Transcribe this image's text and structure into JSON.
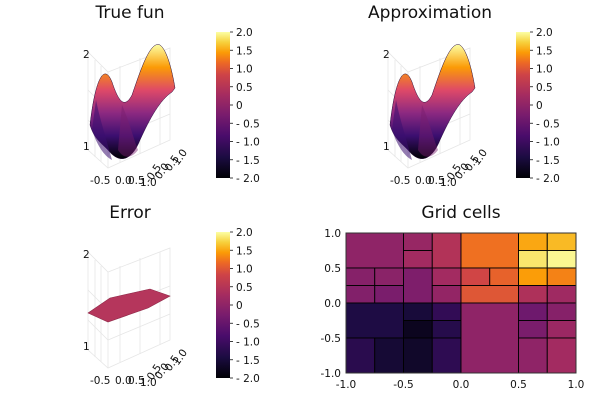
{
  "chart_data": [
    {
      "type": "surface",
      "title": "True fun",
      "zlim": [
        -2,
        2
      ],
      "x_ticks": [
        "-0.5",
        "0.0",
        "0.5",
        "1.0"
      ],
      "y_ticks": [
        "-0.5",
        "0.0",
        "0.5",
        "1.0"
      ],
      "z_ticks": [
        "2",
        "1"
      ],
      "colorbar_ticks": [
        "2.0",
        "1.5",
        "1.0",
        "0.5",
        "0",
        "- 0.5",
        "- 1.0",
        "- 1.5",
        "- 2.0"
      ],
      "colorbar_range": [
        -2,
        2
      ],
      "colormap": "inferno",
      "grid": true
    },
    {
      "type": "surface",
      "title": "Approximation",
      "zlim": [
        -2,
        2
      ],
      "x_ticks": [
        "-0.5",
        "0.0",
        "0.5",
        "1.0"
      ],
      "y_ticks": [
        "-0.5",
        "0.0",
        "0.5",
        "1.0"
      ],
      "z_ticks": [
        "2",
        "1"
      ],
      "colorbar_ticks": [
        "2.0",
        "1.5",
        "1.0",
        "0.5",
        "0",
        "- 0.5",
        "- 1.0",
        "- 1.5",
        "- 2.0"
      ],
      "colorbar_range": [
        -2,
        2
      ],
      "colormap": "inferno",
      "grid": true
    },
    {
      "type": "surface",
      "title": "Error",
      "zlim": [
        -2,
        2
      ],
      "x_ticks": [
        "-0.5",
        "0.0",
        "0.5",
        "1.0"
      ],
      "y_ticks": [
        "-0.5",
        "0.0",
        "0.5",
        "1.0"
      ],
      "z_ticks": [
        "2",
        "1"
      ],
      "colorbar_ticks": [
        "2.0",
        "1.5",
        "1.0",
        "0.5",
        "0",
        "- 0.5",
        "- 1.0",
        "- 1.5",
        "- 2.0"
      ],
      "colorbar_range": [
        -2,
        2
      ],
      "colormap": "inferno",
      "grid": true,
      "approx_value": 0
    },
    {
      "type": "heatmap",
      "title": "Grid cells",
      "xlim": [
        -1,
        1
      ],
      "ylim": [
        -1,
        1
      ],
      "x_ticks": [
        "-1.0",
        "-0.5",
        "0.0",
        "0.5",
        "1.0"
      ],
      "y_ticks": [
        "1.0",
        "0.5",
        "0.0",
        "-0.5",
        "-1.0"
      ],
      "colormap": "inferno",
      "value_range": [
        -2,
        2
      ],
      "grid": false,
      "cells": [
        {
          "x0": -1.0,
          "x1": -0.5,
          "y0": 0.5,
          "y1": 1.0,
          "v": 0.0
        },
        {
          "x0": -0.5,
          "x1": -0.25,
          "y0": 0.75,
          "y1": 1.0,
          "v": 0.1
        },
        {
          "x0": -0.5,
          "x1": -0.25,
          "y0": 0.5,
          "y1": 0.75,
          "v": 0.25
        },
        {
          "x0": -0.25,
          "x1": 0.0,
          "y0": 0.5,
          "y1": 1.0,
          "v": 0.45
        },
        {
          "x0": 0.0,
          "x1": 0.5,
          "y0": 0.5,
          "y1": 1.0,
          "v": 1.2
        },
        {
          "x0": 0.5,
          "x1": 0.75,
          "y0": 0.75,
          "y1": 1.0,
          "v": 1.5
        },
        {
          "x0": 0.5,
          "x1": 0.75,
          "y0": 0.5,
          "y1": 0.75,
          "v": 1.85
        },
        {
          "x0": 0.75,
          "x1": 1.0,
          "y0": 0.75,
          "y1": 1.0,
          "v": 1.6
        },
        {
          "x0": 0.75,
          "x1": 1.0,
          "y0": 0.5,
          "y1": 0.75,
          "v": 1.95
        },
        {
          "x0": -1.0,
          "x1": -0.75,
          "y0": 0.25,
          "y1": 0.5,
          "v": -0.1
        },
        {
          "x0": -0.75,
          "x1": -0.5,
          "y0": 0.25,
          "y1": 0.5,
          "v": -0.05
        },
        {
          "x0": -1.0,
          "x1": -0.75,
          "y0": 0.0,
          "y1": 0.25,
          "v": -0.15
        },
        {
          "x0": -0.75,
          "x1": -0.5,
          "y0": 0.0,
          "y1": 0.25,
          "v": -0.25
        },
        {
          "x0": -0.5,
          "x1": -0.25,
          "y0": 0.0,
          "y1": 0.5,
          "v": -0.2
        },
        {
          "x0": -0.25,
          "x1": 0.0,
          "y0": 0.25,
          "y1": 0.5,
          "v": 0.25
        },
        {
          "x0": -0.25,
          "x1": 0.0,
          "y0": 0.0,
          "y1": 0.25,
          "v": 0.05
        },
        {
          "x0": 0.0,
          "x1": 0.25,
          "y0": 0.25,
          "y1": 0.5,
          "v": 0.85
        },
        {
          "x0": 0.25,
          "x1": 0.5,
          "y0": 0.25,
          "y1": 0.5,
          "v": 1.1
        },
        {
          "x0": 0.0,
          "x1": 0.5,
          "y0": 0.0,
          "y1": 0.25,
          "v": 1.0
        },
        {
          "x0": 0.5,
          "x1": 0.75,
          "y0": 0.25,
          "y1": 0.5,
          "v": 1.45
        },
        {
          "x0": 0.75,
          "x1": 1.0,
          "y0": 0.25,
          "y1": 0.5,
          "v": 1.3
        },
        {
          "x0": 0.5,
          "x1": 0.75,
          "y0": 0.0,
          "y1": 0.25,
          "v": 0.4
        },
        {
          "x0": 0.75,
          "x1": 1.0,
          "y0": 0.0,
          "y1": 0.25,
          "v": 0.2
        },
        {
          "x0": -1.0,
          "x1": -0.5,
          "y0": -0.5,
          "y1": 0.0,
          "v": -1.4
        },
        {
          "x0": -0.5,
          "x1": -0.25,
          "y0": -0.25,
          "y1": 0.0,
          "v": -1.5
        },
        {
          "x0": -0.5,
          "x1": -0.25,
          "y0": -0.5,
          "y1": -0.25,
          "v": -1.75
        },
        {
          "x0": -0.25,
          "x1": 0.0,
          "y0": -0.25,
          "y1": 0.0,
          "v": -1.15
        },
        {
          "x0": -0.25,
          "x1": 0.0,
          "y0": -0.5,
          "y1": -0.25,
          "v": -1.3
        },
        {
          "x0": -1.0,
          "x1": -0.75,
          "y0": -1.0,
          "y1": -0.5,
          "v": -1.25
        },
        {
          "x0": -0.75,
          "x1": -0.5,
          "y0": -1.0,
          "y1": -0.5,
          "v": -1.55
        },
        {
          "x0": -0.5,
          "x1": -0.25,
          "y0": -1.0,
          "y1": -0.5,
          "v": -1.65
        },
        {
          "x0": -0.25,
          "x1": 0.0,
          "y0": -1.0,
          "y1": -0.5,
          "v": -1.2
        },
        {
          "x0": 0.0,
          "x1": 0.5,
          "y0": -1.0,
          "y1": 0.0,
          "v": 0.0
        },
        {
          "x0": 0.5,
          "x1": 0.75,
          "y0": -0.25,
          "y1": 0.0,
          "v": -0.4
        },
        {
          "x0": 0.75,
          "x1": 1.0,
          "y0": -0.25,
          "y1": 0.0,
          "v": -0.1
        },
        {
          "x0": 0.5,
          "x1": 0.75,
          "y0": -0.5,
          "y1": -0.25,
          "v": -0.25
        },
        {
          "x0": 0.75,
          "x1": 1.0,
          "y0": -0.5,
          "y1": -0.25,
          "v": 0.15
        },
        {
          "x0": 0.5,
          "x1": 0.75,
          "y0": -1.0,
          "y1": -0.5,
          "v": 0.0
        },
        {
          "x0": 0.75,
          "x1": 1.0,
          "y0": -1.0,
          "y1": -0.5,
          "v": 0.25
        }
      ]
    }
  ]
}
